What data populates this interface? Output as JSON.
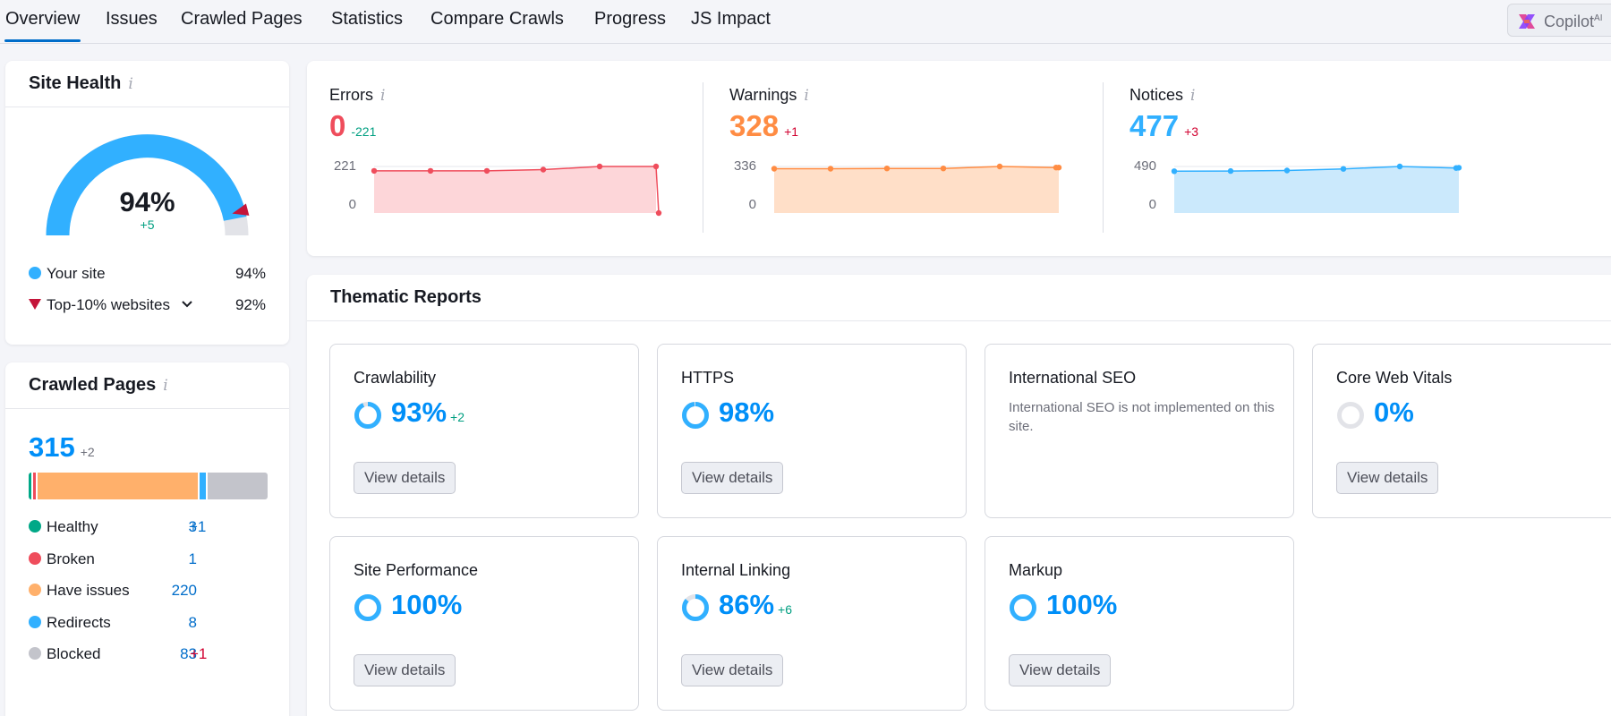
{
  "tabs": [
    {
      "label": "Overview",
      "active": true
    },
    {
      "label": "Issues"
    },
    {
      "label": "Crawled Pages"
    },
    {
      "label": "Statistics"
    },
    {
      "label": "Compare Crawls"
    },
    {
      "label": "Progress"
    },
    {
      "label": "JS Impact"
    }
  ],
  "copilot": {
    "label": "Copilot",
    "sup": "AI"
  },
  "site_health": {
    "title": "Site Health",
    "info": "i",
    "score": "94%",
    "score_delta": "+5",
    "score_fraction": 0.94,
    "top10_fraction": 0.92,
    "legend": [
      {
        "label": "Your site",
        "value": "94%",
        "color": "#31b0ff"
      },
      {
        "label": "Top-10% websites",
        "value": "92%",
        "color": "#c4153a"
      }
    ]
  },
  "crawled_pages": {
    "title": "Crawled Pages",
    "info": "i",
    "total": "315",
    "total_delta": "+2",
    "bar_segments": [
      {
        "color": "#00a887",
        "value": 3
      },
      {
        "color": "#ef4d5c",
        "value": 1
      },
      {
        "color": "#ffb06b",
        "value": 220
      },
      {
        "color": "#31b0ff",
        "value": 8
      },
      {
        "color": "#c3c4cb",
        "value": 83
      }
    ],
    "legend": [
      {
        "label": "Healthy",
        "value": "3",
        "delta": "+1",
        "delta_type": "green",
        "color": "#00a887"
      },
      {
        "label": "Broken",
        "value": "1",
        "delta": "",
        "color": "#ef4d5c"
      },
      {
        "label": "Have issues",
        "value": "220",
        "delta": "",
        "color": "#ffb06b"
      },
      {
        "label": "Redirects",
        "value": "8",
        "delta": "",
        "color": "#31b0ff"
      },
      {
        "label": "Blocked",
        "value": "83",
        "delta": "+1",
        "delta_type": "red",
        "color": "#c3c4cb"
      }
    ]
  },
  "issues": [
    {
      "label": "Errors",
      "info": "i",
      "value": "0",
      "delta": "-221",
      "delta_type": "green",
      "color": "#ef4d5c",
      "fill": "#fdd6d9",
      "y_max_label": "221",
      "y_min_label": "0",
      "y_max": 221,
      "points": [
        200,
        200,
        200,
        206,
        221,
        221,
        0
      ]
    },
    {
      "label": "Warnings",
      "info": "i",
      "value": "328",
      "delta": "+1",
      "delta_type": "red",
      "color": "#ff8c43",
      "fill": "#ffdfc8",
      "y_max_label": "336",
      "y_min_label": "0",
      "y_max": 336,
      "points": [
        320,
        320,
        322,
        322,
        336,
        328,
        328
      ]
    },
    {
      "label": "Notices",
      "info": "i",
      "value": "477",
      "delta": "+3",
      "delta_type": "red",
      "color": "#31b0ff",
      "fill": "#cbe9fc",
      "y_max_label": "490",
      "y_min_label": "0",
      "y_max": 490,
      "points": [
        440,
        442,
        448,
        465,
        490,
        474,
        477
      ]
    }
  ],
  "thematic": {
    "title": "Thematic Reports",
    "tiles": [
      {
        "title": "Crawlability",
        "pct": "93%",
        "delta": "+2",
        "fraction": 0.93,
        "button": "View details"
      },
      {
        "title": "HTTPS",
        "pct": "98%",
        "delta": "",
        "fraction": 0.98,
        "button": "View details"
      },
      {
        "title": "International SEO",
        "text": "International SEO is not implemented on this site."
      },
      {
        "title": "Core Web Vitals",
        "pct": "0%",
        "delta": "",
        "fraction": 0,
        "button": "View details"
      },
      {
        "title": "Site Performance",
        "pct": "100%",
        "delta": "",
        "fraction": 1,
        "button": "View details"
      },
      {
        "title": "Internal Linking",
        "pct": "86%",
        "delta": "+6",
        "fraction": 0.86,
        "button": "View details"
      },
      {
        "title": "Markup",
        "pct": "100%",
        "delta": "",
        "fraction": 1,
        "button": "View details"
      }
    ]
  }
}
